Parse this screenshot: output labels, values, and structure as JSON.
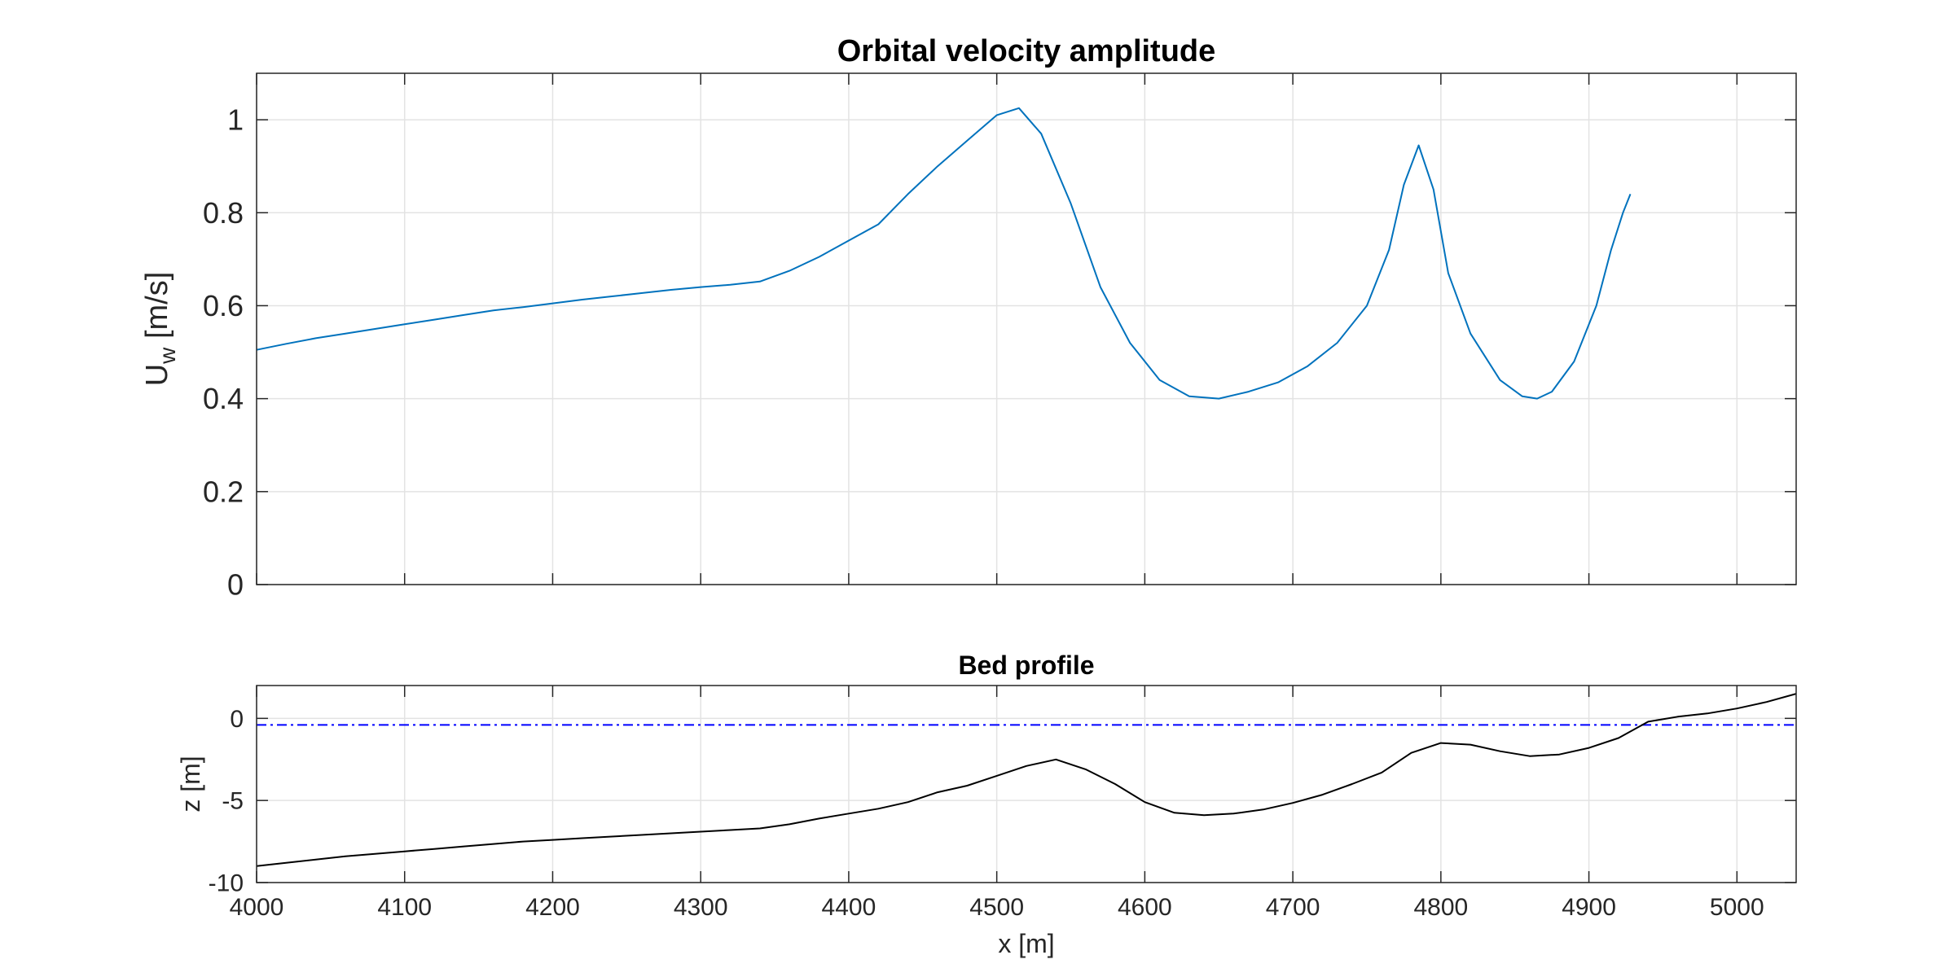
{
  "chart_data": [
    {
      "type": "line",
      "title": "Orbital velocity amplitude",
      "xlabel": "",
      "ylabel": "U",
      "ylabel_sub": "w",
      "ylabel_unit": " [m/s]",
      "xlim": [
        4000,
        5040
      ],
      "ylim": [
        0,
        1.1
      ],
      "xticks": [
        4000,
        4100,
        4200,
        4300,
        4400,
        4500,
        4600,
        4700,
        4800,
        4900,
        5000
      ],
      "yticks": [
        0,
        0.2,
        0.4,
        0.6,
        0.8,
        1
      ],
      "ytick_labels": [
        "0",
        "0.2",
        "0.4",
        "0.6",
        "0.8",
        "1"
      ],
      "grid": true,
      "series": [
        {
          "color": "#0072BD",
          "x": [
            4000,
            4020,
            4040,
            4060,
            4080,
            4100,
            4120,
            4140,
            4160,
            4180,
            4200,
            4220,
            4240,
            4260,
            4280,
            4300,
            4320,
            4340,
            4360,
            4380,
            4400,
            4420,
            4440,
            4460,
            4480,
            4500,
            4515,
            4530,
            4550,
            4570,
            4590,
            4610,
            4630,
            4650,
            4670,
            4690,
            4710,
            4730,
            4750,
            4765,
            4775,
            4785,
            4795,
            4805,
            4820,
            4840,
            4855,
            4865,
            4875,
            4890,
            4905,
            4915,
            4923,
            4928
          ],
          "y": [
            0.505,
            0.518,
            0.53,
            0.54,
            0.55,
            0.56,
            0.57,
            0.58,
            0.59,
            0.597,
            0.605,
            0.613,
            0.62,
            0.627,
            0.634,
            0.64,
            0.645,
            0.652,
            0.675,
            0.705,
            0.74,
            0.775,
            0.84,
            0.9,
            0.955,
            1.01,
            1.025,
            0.97,
            0.82,
            0.64,
            0.52,
            0.44,
            0.405,
            0.4,
            0.415,
            0.435,
            0.47,
            0.52,
            0.6,
            0.72,
            0.86,
            0.945,
            0.85,
            0.67,
            0.54,
            0.44,
            0.405,
            0.4,
            0.415,
            0.48,
            0.6,
            0.72,
            0.8,
            0.84
          ]
        }
      ]
    },
    {
      "type": "line",
      "title": "Bed profile",
      "xlabel": "x [m]",
      "ylabel": "z [m]",
      "xlim": [
        4000,
        5040
      ],
      "ylim": [
        -10,
        2
      ],
      "xticks": [
        4000,
        4100,
        4200,
        4300,
        4400,
        4500,
        4600,
        4700,
        4800,
        4900,
        5000
      ],
      "yticks": [
        -10,
        -5,
        0
      ],
      "ytick_labels": [
        "-10",
        "-5",
        "0"
      ],
      "grid": true,
      "hline": {
        "y": -0.4,
        "color": "#0000FF",
        "style": "dash-dot"
      },
      "series": [
        {
          "color": "#000000",
          "x": [
            4000,
            4020,
            4040,
            4060,
            4080,
            4100,
            4120,
            4140,
            4160,
            4180,
            4200,
            4220,
            4240,
            4260,
            4280,
            4300,
            4320,
            4340,
            4360,
            4380,
            4400,
            4420,
            4440,
            4460,
            4480,
            4500,
            4520,
            4540,
            4560,
            4580,
            4600,
            4620,
            4640,
            4660,
            4680,
            4700,
            4720,
            4740,
            4760,
            4780,
            4800,
            4820,
            4840,
            4860,
            4880,
            4900,
            4920,
            4940,
            4960,
            4980,
            5000,
            5020,
            5040
          ],
          "y": [
            -9.0,
            -8.8,
            -8.6,
            -8.4,
            -8.25,
            -8.1,
            -7.95,
            -7.8,
            -7.65,
            -7.5,
            -7.4,
            -7.3,
            -7.2,
            -7.1,
            -7.0,
            -6.9,
            -6.8,
            -6.7,
            -6.45,
            -6.1,
            -5.8,
            -5.5,
            -5.1,
            -4.5,
            -4.1,
            -3.5,
            -2.9,
            -2.5,
            -3.1,
            -4.0,
            -5.1,
            -5.75,
            -5.9,
            -5.8,
            -5.55,
            -5.15,
            -4.65,
            -4.0,
            -3.3,
            -2.1,
            -1.5,
            -1.6,
            -2.0,
            -2.3,
            -2.2,
            -1.8,
            -1.2,
            -0.2,
            0.1,
            0.3,
            0.6,
            1.0,
            1.5
          ]
        }
      ]
    }
  ]
}
